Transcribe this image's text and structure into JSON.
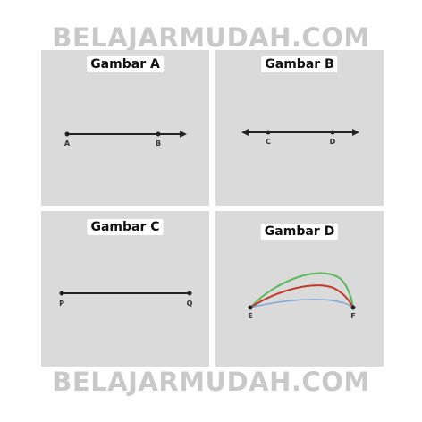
{
  "watermark": "BELAJARMUDAH.COM",
  "panels": {
    "a": {
      "title": "Gambar A",
      "points": [
        "A",
        "B"
      ]
    },
    "b": {
      "title": "Gambar B",
      "points": [
        "C",
        "D"
      ]
    },
    "c": {
      "title": "Gambar C",
      "points": [
        "P",
        "Q"
      ]
    },
    "d": {
      "title": "Gambar D",
      "points": [
        "E",
        "F"
      ]
    }
  },
  "colors": {
    "panel_bg": "#dadada",
    "line": "#222222",
    "curve_green": "#5cb85c",
    "curve_red": "#c0392b",
    "curve_blue": "#7fa7d9",
    "watermark": "#c9c9c9"
  }
}
